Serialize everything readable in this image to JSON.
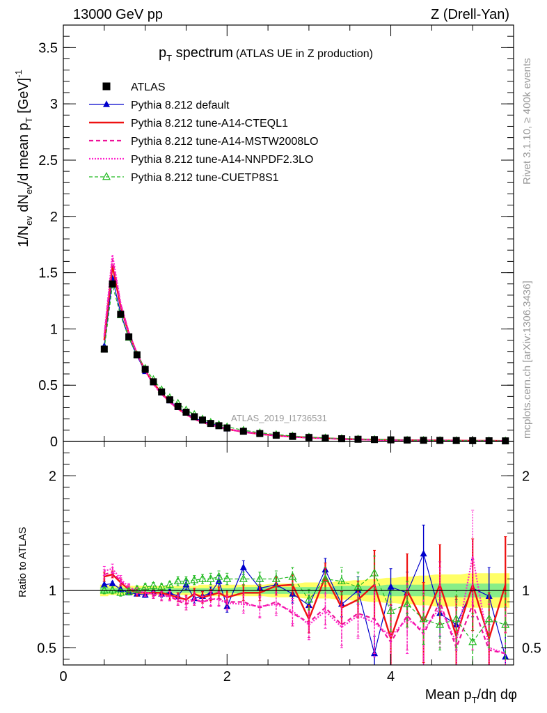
{
  "header": {
    "left": "13000 GeV pp",
    "right": "Z (Drell-Yan)"
  },
  "side_labels": {
    "top": "Rivet 3.1.10, ≥ 400k events",
    "bottom": "mcplots.cern.ch [arXiv:1306.3436]"
  },
  "watermark": "ATLAS_2019_I1736531",
  "colors": {
    "atlas": "#000000",
    "default": "#0000cc",
    "cteql1": "#ee1111",
    "mstw": "#ee1199",
    "nnpdf": "#ff22cc",
    "cuetp": "#22bb22",
    "band_outer": "#ffff66",
    "band_inner": "#88ee88"
  },
  "chart_data": [
    {
      "type": "line",
      "panel": "main",
      "title": {
        "main": "p",
        "sub": "T",
        "rest": " spectrum",
        "note": "(ATLAS UE in Z production)"
      },
      "ylabel": "1/N_ev dN_ev/d mean p_T [GeV]^-1",
      "ylabel_parts": {
        "a": "1/N",
        "a_sub": "ev",
        "b": " dN",
        "b_sub": "ev",
        "c": "/d mean p",
        "c_sub": "T",
        "d": " [GeV]",
        "d_sup": "-1"
      },
      "xlim": [
        0,
        5.5
      ],
      "ylim": [
        0,
        3.7
      ],
      "yticks": [
        0,
        0.5,
        1,
        1.5,
        2,
        2.5,
        3,
        3.5
      ],
      "ytick_labels": [
        "0",
        "0.5",
        "1",
        "1.5",
        "2",
        "2.5",
        "3",
        "3.5"
      ],
      "x": [
        0.5,
        0.6,
        0.7,
        0.8,
        0.9,
        1.0,
        1.1,
        1.2,
        1.3,
        1.4,
        1.5,
        1.6,
        1.7,
        1.8,
        1.9,
        2.0,
        2.2,
        2.4,
        2.6,
        2.8,
        3.0,
        3.2,
        3.4,
        3.6,
        3.8,
        4.0,
        4.2,
        4.4,
        4.6,
        4.8,
        5.0,
        5.2,
        5.4
      ],
      "legend": [
        {
          "label": "ATLAS",
          "series": "atlas"
        },
        {
          "label": "Pythia 8.212 default",
          "series": "default"
        },
        {
          "label": "Pythia 8.212 tune-A14-CTEQL1",
          "series": "cteql1"
        },
        {
          "label": "Pythia 8.212 tune-A14-MSTW2008LO",
          "series": "mstw"
        },
        {
          "label": "Pythia 8.212 tune-A14-NNPDF2.3LO",
          "series": "nnpdf"
        },
        {
          "label": "Pythia 8.212 tune-CUETP8S1",
          "series": "cuetp"
        }
      ],
      "series": [
        {
          "key": "atlas",
          "name": "ATLAS",
          "values": [
            0.82,
            1.4,
            1.13,
            0.93,
            0.77,
            0.64,
            0.53,
            0.44,
            0.37,
            0.31,
            0.26,
            0.22,
            0.19,
            0.16,
            0.14,
            0.12,
            0.09,
            0.07,
            0.055,
            0.045,
            0.036,
            0.029,
            0.024,
            0.02,
            0.017,
            0.014,
            0.012,
            0.01,
            0.009,
            0.008,
            0.007,
            0.006,
            0.005
          ]
        },
        {
          "key": "default",
          "name": "Pythia 8.212 default",
          "values": [
            0.85,
            1.45,
            1.14,
            0.92,
            0.76,
            0.62,
            0.52,
            0.43,
            0.36,
            0.3,
            0.25,
            0.21,
            0.18,
            0.16,
            0.14,
            0.11,
            0.09,
            0.07,
            0.055,
            0.044,
            0.035,
            0.029,
            0.023,
            0.019,
            0.016,
            0.013,
            0.011,
            0.01,
            0.009,
            0.008,
            0.007,
            0.006,
            0.005
          ]
        },
        {
          "key": "cteql1",
          "name": "Pythia 8.212 tune-A14-CTEQL1",
          "values": [
            0.9,
            1.56,
            1.2,
            0.96,
            0.78,
            0.63,
            0.52,
            0.43,
            0.35,
            0.29,
            0.24,
            0.2,
            0.17,
            0.15,
            0.13,
            0.11,
            0.085,
            0.066,
            0.052,
            0.042,
            0.034,
            0.028,
            0.023,
            0.019,
            0.016,
            0.013,
            0.011,
            0.01,
            0.009,
            0.008,
            0.007,
            0.006,
            0.005
          ]
        },
        {
          "key": "mstw",
          "name": "Pythia 8.212 tune-A14-MSTW2008LO",
          "values": [
            0.93,
            1.62,
            1.22,
            0.97,
            0.78,
            0.63,
            0.51,
            0.42,
            0.35,
            0.29,
            0.24,
            0.2,
            0.17,
            0.15,
            0.13,
            0.11,
            0.085,
            0.066,
            0.052,
            0.041,
            0.033,
            0.027,
            0.022,
            0.018,
            0.015,
            0.012,
            0.011,
            0.009,
            0.008,
            0.007,
            0.006,
            0.005,
            0.005
          ]
        },
        {
          "key": "nnpdf",
          "name": "Pythia 8.212 tune-A14-NNPDF2.3LO",
          "values": [
            0.95,
            1.66,
            1.23,
            0.97,
            0.78,
            0.63,
            0.51,
            0.42,
            0.35,
            0.29,
            0.24,
            0.2,
            0.17,
            0.15,
            0.13,
            0.11,
            0.084,
            0.065,
            0.051,
            0.041,
            0.033,
            0.027,
            0.022,
            0.018,
            0.015,
            0.012,
            0.011,
            0.009,
            0.008,
            0.007,
            0.006,
            0.005,
            0.005
          ]
        },
        {
          "key": "cuetp",
          "name": "Pythia 8.212 tune-CUETP8S1",
          "values": [
            0.82,
            1.39,
            1.12,
            0.92,
            0.77,
            0.65,
            0.55,
            0.46,
            0.39,
            0.34,
            0.28,
            0.24,
            0.2,
            0.17,
            0.15,
            0.13,
            0.1,
            0.078,
            0.061,
            0.049,
            0.039,
            0.032,
            0.026,
            0.022,
            0.018,
            0.015,
            0.012,
            0.01,
            0.009,
            0.008,
            0.007,
            0.006,
            0.005
          ]
        }
      ]
    },
    {
      "type": "line",
      "panel": "ratio",
      "ylabel": "Ratio to ATLAS",
      "xlabel": "Mean p_T/dη dφ",
      "xlabel_parts": {
        "a": "Mean p",
        "a_sub": "T",
        "b": "/dη dφ"
      },
      "xlim": [
        0,
        5.5
      ],
      "ylim": [
        0.35,
        2.3
      ],
      "xticks": [
        0,
        2,
        4
      ],
      "xtick_labels": [
        "0",
        "2",
        "4"
      ],
      "yticks": [
        0.5,
        1,
        2
      ],
      "ytick_labels": [
        "0.5",
        "1",
        "2"
      ],
      "reference": 1,
      "x": [
        0.5,
        0.6,
        0.7,
        0.8,
        0.9,
        1.0,
        1.1,
        1.2,
        1.3,
        1.4,
        1.5,
        1.6,
        1.7,
        1.8,
        1.9,
        2.0,
        2.2,
        2.4,
        2.6,
        2.8,
        3.0,
        3.2,
        3.4,
        3.6,
        3.8,
        4.0,
        4.2,
        4.4,
        4.6,
        4.8,
        5.0,
        5.2,
        5.4
      ],
      "band_outer": [
        0.05,
        0.04,
        0.04,
        0.04,
        0.04,
        0.04,
        0.04,
        0.04,
        0.04,
        0.04,
        0.04,
        0.04,
        0.05,
        0.05,
        0.05,
        0.05,
        0.05,
        0.05,
        0.06,
        0.06,
        0.07,
        0.07,
        0.08,
        0.09,
        0.1,
        0.11,
        0.12,
        0.13,
        0.14,
        0.14,
        0.15,
        0.15,
        0.15
      ],
      "band_inner": [
        0.03,
        0.02,
        0.02,
        0.02,
        0.02,
        0.02,
        0.02,
        0.02,
        0.02,
        0.02,
        0.02,
        0.02,
        0.02,
        0.02,
        0.02,
        0.02,
        0.03,
        0.03,
        0.03,
        0.03,
        0.03,
        0.03,
        0.04,
        0.04,
        0.04,
        0.05,
        0.05,
        0.05,
        0.06,
        0.06,
        0.06,
        0.06,
        0.06
      ],
      "series": [
        {
          "key": "default",
          "values": [
            1.05,
            1.06,
            1.01,
            0.98,
            0.97,
            0.96,
            0.99,
            0.97,
            0.98,
            0.95,
            1.05,
            0.93,
            0.95,
            0.98,
            1.08,
            0.86,
            1.2,
            1.02,
            1.05,
            0.97,
            0.87,
            1.18,
            0.88,
            1.0,
            0.45,
            1.03,
            0.98,
            1.32,
            0.8,
            0.7,
            1.02,
            0.95,
            0.42
          ],
          "errors": [
            0.03,
            0.02,
            0.02,
            0.02,
            0.02,
            0.02,
            0.03,
            0.03,
            0.03,
            0.03,
            0.04,
            0.04,
            0.04,
            0.05,
            0.05,
            0.05,
            0.06,
            0.06,
            0.07,
            0.08,
            0.09,
            0.1,
            0.11,
            0.12,
            0.15,
            0.16,
            0.18,
            0.25,
            0.2,
            0.22,
            0.25,
            0.25,
            0.28
          ]
        },
        {
          "key": "cteql1",
          "values": [
            1.12,
            1.14,
            1.07,
            1.01,
            0.98,
            0.98,
            0.98,
            0.98,
            0.96,
            0.94,
            0.92,
            0.97,
            0.94,
            0.96,
            0.98,
            0.94,
            0.98,
            0.98,
            1.04,
            1.05,
            0.75,
            1.12,
            0.85,
            0.92,
            1.05,
            0.58,
            1.0,
            0.72,
            1.05,
            0.6,
            1.05,
            0.58,
            1.05
          ],
          "errors": [
            0.04,
            0.03,
            0.03,
            0.03,
            0.03,
            0.03,
            0.03,
            0.03,
            0.04,
            0.04,
            0.04,
            0.05,
            0.05,
            0.05,
            0.05,
            0.06,
            0.07,
            0.07,
            0.08,
            0.09,
            0.12,
            0.12,
            0.14,
            0.16,
            0.3,
            0.3,
            0.32,
            0.35,
            0.35,
            0.35,
            0.4,
            0.4,
            0.42
          ]
        },
        {
          "key": "mstw",
          "values": [
            1.14,
            1.16,
            1.08,
            1.02,
            0.99,
            0.98,
            0.96,
            0.95,
            0.95,
            0.91,
            0.88,
            0.92,
            0.9,
            0.92,
            0.93,
            0.9,
            0.9,
            0.85,
            0.9,
            0.8,
            0.72,
            0.85,
            0.7,
            0.8,
            0.75,
            0.55,
            0.78,
            0.62,
            0.9,
            0.5,
            0.88,
            0.48,
            0.45
          ],
          "errors": [
            0.04,
            0.04,
            0.03,
            0.03,
            0.03,
            0.03,
            0.03,
            0.04,
            0.04,
            0.04,
            0.05,
            0.05,
            0.05,
            0.06,
            0.06,
            0.06,
            0.08,
            0.09,
            0.1,
            0.11,
            0.13,
            0.15,
            0.18,
            0.2,
            0.3,
            0.3,
            0.3,
            0.35,
            0.35,
            0.35,
            0.4,
            0.4,
            0.4
          ]
        },
        {
          "key": "nnpdf",
          "values": [
            1.17,
            1.19,
            1.1,
            1.03,
            1.0,
            0.98,
            0.97,
            0.96,
            0.95,
            0.92,
            0.9,
            0.93,
            0.9,
            0.93,
            0.92,
            0.89,
            0.88,
            0.86,
            0.88,
            0.82,
            0.7,
            0.82,
            0.68,
            0.78,
            0.72,
            0.6,
            0.75,
            0.65,
            0.85,
            0.55,
            1.3,
            0.5,
            0.45
          ],
          "errors": [
            0.04,
            0.04,
            0.03,
            0.03,
            0.03,
            0.03,
            0.03,
            0.04,
            0.04,
            0.04,
            0.05,
            0.05,
            0.05,
            0.06,
            0.06,
            0.06,
            0.08,
            0.09,
            0.1,
            0.11,
            0.13,
            0.15,
            0.18,
            0.2,
            0.3,
            0.3,
            0.3,
            0.35,
            0.35,
            0.35,
            0.4,
            0.4,
            0.4
          ]
        },
        {
          "key": "cuetp",
          "values": [
            1.0,
            1.0,
            0.98,
            0.99,
            1.01,
            1.03,
            1.04,
            1.03,
            1.05,
            1.08,
            1.08,
            1.09,
            1.1,
            1.1,
            1.12,
            1.1,
            1.1,
            1.1,
            1.1,
            1.12,
            0.92,
            1.1,
            1.08,
            1.03,
            1.15,
            0.82,
            0.88,
            0.75,
            0.7,
            0.75,
            0.55,
            0.75,
            0.7
          ],
          "errors": [
            0.03,
            0.03,
            0.03,
            0.03,
            0.03,
            0.03,
            0.03,
            0.03,
            0.03,
            0.04,
            0.04,
            0.04,
            0.04,
            0.05,
            0.05,
            0.05,
            0.06,
            0.06,
            0.07,
            0.08,
            0.09,
            0.1,
            0.12,
            0.13,
            0.15,
            0.18,
            0.2,
            0.22,
            0.22,
            0.25,
            0.25,
            0.25,
            0.3
          ]
        }
      ]
    }
  ]
}
